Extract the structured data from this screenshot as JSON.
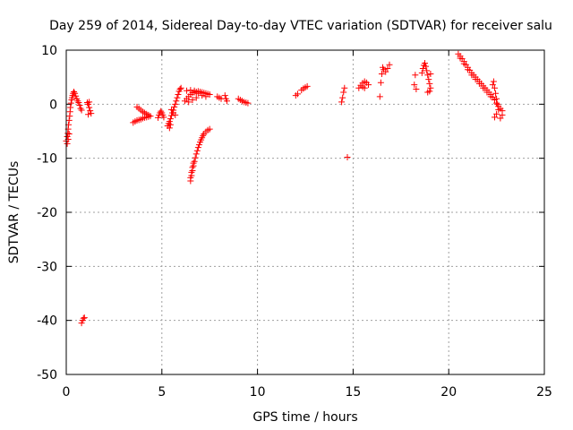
{
  "chart_data": {
    "type": "scatter",
    "title": "Day 259 of 2014, Sidereal Day-to-day VTEC variation (SDTVAR) for receiver salu",
    "xlabel": "GPS time / hours",
    "ylabel": "SDTVAR / TECUs",
    "xlim": [
      0,
      25
    ],
    "ylim": [
      -50,
      10
    ],
    "xticks": [
      0,
      5,
      10,
      15,
      20,
      25
    ],
    "yticks": [
      -50,
      -40,
      -30,
      -20,
      -10,
      0,
      10
    ],
    "xtick_labels": [
      "0",
      "5",
      "10",
      "15",
      "20",
      "25"
    ],
    "ytick_labels": [
      "-50",
      "-40",
      "-30",
      "-20",
      "-10",
      "0",
      "10"
    ],
    "grid": true,
    "marker": "+",
    "color": "#ff0000",
    "series": [
      {
        "name": "SDTVAR",
        "points": [
          [
            0.0,
            -6.8
          ],
          [
            0.05,
            -6.0
          ],
          [
            0.08,
            -5.4
          ],
          [
            0.1,
            -4.6
          ],
          [
            0.12,
            -3.8
          ],
          [
            0.15,
            -3.0
          ],
          [
            0.18,
            -2.2
          ],
          [
            0.2,
            -1.4
          ],
          [
            0.22,
            -0.6
          ],
          [
            0.25,
            0.2
          ],
          [
            0.28,
            0.8
          ],
          [
            0.3,
            1.2
          ],
          [
            0.33,
            1.6
          ],
          [
            0.36,
            2.0
          ],
          [
            0.4,
            2.3
          ],
          [
            0.45,
            2.0
          ],
          [
            0.5,
            1.5
          ],
          [
            0.55,
            1.0
          ],
          [
            0.6,
            0.6
          ],
          [
            0.65,
            0.3
          ],
          [
            0.7,
            -0.2
          ],
          [
            0.75,
            -0.8
          ],
          [
            0.8,
            -1.1
          ],
          [
            0.05,
            -7.3
          ],
          [
            0.1,
            -6.5
          ],
          [
            0.15,
            -5.5
          ],
          [
            0.8,
            -40.5
          ],
          [
            0.85,
            -40.0
          ],
          [
            0.9,
            -39.6
          ],
          [
            0.95,
            -39.5
          ],
          [
            1.1,
            0.3
          ],
          [
            1.15,
            0.0
          ],
          [
            1.2,
            -0.6
          ],
          [
            1.25,
            -1.2
          ],
          [
            1.3,
            -1.7
          ],
          [
            1.15,
            -1.9
          ],
          [
            1.2,
            0.4
          ],
          [
            3.5,
            -3.4
          ],
          [
            3.6,
            -3.2
          ],
          [
            3.7,
            -3.0
          ],
          [
            3.8,
            -2.9
          ],
          [
            3.9,
            -2.8
          ],
          [
            4.0,
            -2.6
          ],
          [
            4.1,
            -2.5
          ],
          [
            4.2,
            -2.4
          ],
          [
            4.3,
            -2.3
          ],
          [
            4.4,
            -2.2
          ],
          [
            3.7,
            -0.5
          ],
          [
            3.8,
            -0.8
          ],
          [
            3.9,
            -1.1
          ],
          [
            4.0,
            -1.4
          ],
          [
            4.1,
            -1.6
          ],
          [
            4.2,
            -1.8
          ],
          [
            4.3,
            -2.0
          ],
          [
            4.8,
            -2.5
          ],
          [
            4.85,
            -2.0
          ],
          [
            4.9,
            -1.6
          ],
          [
            4.95,
            -1.3
          ],
          [
            5.0,
            -1.6
          ],
          [
            5.05,
            -2.0
          ],
          [
            5.1,
            -2.4
          ],
          [
            5.3,
            -4.0
          ],
          [
            5.35,
            -3.6
          ],
          [
            5.4,
            -3.2
          ],
          [
            5.45,
            -2.7
          ],
          [
            5.5,
            -2.1
          ],
          [
            5.55,
            -1.6
          ],
          [
            5.6,
            -1.1
          ],
          [
            5.65,
            -0.5
          ],
          [
            5.7,
            0.0
          ],
          [
            5.75,
            0.6
          ],
          [
            5.8,
            1.2
          ],
          [
            5.85,
            1.8
          ],
          [
            5.9,
            2.4
          ],
          [
            5.95,
            2.8
          ],
          [
            6.0,
            3.0
          ],
          [
            5.4,
            -4.4
          ],
          [
            5.45,
            -3.8
          ],
          [
            5.5,
            -1.0
          ],
          [
            5.6,
            -1.6
          ],
          [
            5.7,
            -2.0
          ],
          [
            6.2,
            0.6
          ],
          [
            6.3,
            1.0
          ],
          [
            6.4,
            1.4
          ],
          [
            6.5,
            1.8
          ],
          [
            6.6,
            2.1
          ],
          [
            6.7,
            2.2
          ],
          [
            6.8,
            2.3
          ],
          [
            6.9,
            2.4
          ],
          [
            7.0,
            2.3
          ],
          [
            7.1,
            2.2
          ],
          [
            7.2,
            2.1
          ],
          [
            7.3,
            2.0
          ],
          [
            7.4,
            1.9
          ],
          [
            7.5,
            1.8
          ],
          [
            6.3,
            2.5
          ],
          [
            6.5,
            2.6
          ],
          [
            6.7,
            2.5
          ],
          [
            6.9,
            2.0
          ],
          [
            7.1,
            1.6
          ],
          [
            7.3,
            1.4
          ],
          [
            6.4,
            0.4
          ],
          [
            6.6,
            0.8
          ],
          [
            6.8,
            1.2
          ],
          [
            6.5,
            -14.2
          ],
          [
            6.55,
            -13.2
          ],
          [
            6.6,
            -12.3
          ],
          [
            6.65,
            -11.4
          ],
          [
            6.7,
            -10.6
          ],
          [
            6.75,
            -9.9
          ],
          [
            6.8,
            -9.2
          ],
          [
            6.85,
            -8.6
          ],
          [
            6.9,
            -8.0
          ],
          [
            6.95,
            -7.5
          ],
          [
            7.0,
            -7.0
          ],
          [
            7.05,
            -6.6
          ],
          [
            7.1,
            -6.2
          ],
          [
            7.15,
            -5.8
          ],
          [
            7.2,
            -5.5
          ],
          [
            7.3,
            -5.1
          ],
          [
            7.4,
            -4.8
          ],
          [
            7.5,
            -4.6
          ],
          [
            6.5,
            -13.6
          ],
          [
            6.55,
            -12.6
          ],
          [
            6.6,
            -11.7
          ],
          [
            6.65,
            -10.9
          ],
          [
            7.9,
            1.4
          ],
          [
            8.0,
            1.2
          ],
          [
            8.1,
            1.0
          ],
          [
            8.3,
            1.6
          ],
          [
            8.35,
            1.0
          ],
          [
            8.4,
            0.6
          ],
          [
            9.0,
            1.0
          ],
          [
            9.1,
            0.8
          ],
          [
            9.2,
            0.6
          ],
          [
            9.3,
            0.4
          ],
          [
            9.4,
            0.3
          ],
          [
            9.5,
            0.2
          ],
          [
            12.0,
            1.6
          ],
          [
            12.1,
            1.9
          ],
          [
            12.3,
            2.6
          ],
          [
            12.4,
            2.9
          ],
          [
            12.5,
            3.1
          ],
          [
            12.6,
            3.3
          ],
          [
            14.4,
            0.4
          ],
          [
            14.45,
            1.2
          ],
          [
            14.5,
            2.2
          ],
          [
            14.55,
            3.0
          ],
          [
            14.7,
            -9.8
          ],
          [
            15.3,
            3.0
          ],
          [
            15.4,
            3.5
          ],
          [
            15.5,
            3.9
          ],
          [
            15.6,
            4.2
          ],
          [
            15.7,
            4.0
          ],
          [
            15.8,
            3.6
          ],
          [
            15.5,
            3.2
          ],
          [
            15.6,
            3.0
          ],
          [
            16.4,
            1.4
          ],
          [
            16.45,
            4.0
          ],
          [
            16.5,
            5.6
          ],
          [
            16.55,
            6.8
          ],
          [
            16.6,
            6.4
          ],
          [
            16.7,
            6.0
          ],
          [
            16.8,
            6.6
          ],
          [
            16.9,
            7.3
          ],
          [
            18.2,
            3.6
          ],
          [
            18.25,
            5.4
          ],
          [
            18.3,
            2.8
          ],
          [
            18.6,
            5.8
          ],
          [
            18.65,
            6.6
          ],
          [
            18.7,
            7.2
          ],
          [
            18.75,
            7.6
          ],
          [
            18.8,
            7.0
          ],
          [
            18.85,
            6.2
          ],
          [
            18.9,
            5.4
          ],
          [
            18.95,
            4.6
          ],
          [
            19.0,
            3.8
          ],
          [
            19.0,
            2.4
          ],
          [
            19.05,
            3.0
          ],
          [
            18.9,
            2.2
          ],
          [
            19.05,
            5.6
          ],
          [
            20.5,
            9.3
          ],
          [
            20.6,
            8.9
          ],
          [
            20.7,
            8.4
          ],
          [
            20.8,
            7.9
          ],
          [
            20.9,
            7.3
          ],
          [
            21.0,
            6.8
          ],
          [
            21.1,
            6.3
          ],
          [
            21.2,
            5.8
          ],
          [
            21.3,
            5.4
          ],
          [
            21.4,
            5.0
          ],
          [
            21.5,
            4.6
          ],
          [
            21.6,
            4.2
          ],
          [
            21.7,
            3.8
          ],
          [
            21.8,
            3.4
          ],
          [
            21.9,
            3.0
          ],
          [
            22.0,
            2.6
          ],
          [
            22.1,
            2.2
          ],
          [
            22.2,
            1.8
          ],
          [
            22.3,
            1.3
          ],
          [
            22.4,
            0.8
          ],
          [
            22.5,
            0.2
          ],
          [
            22.6,
            -0.4
          ],
          [
            22.7,
            -0.8
          ],
          [
            22.8,
            -1.2
          ],
          [
            20.6,
            8.5
          ],
          [
            20.8,
            7.5
          ],
          [
            21.0,
            6.4
          ],
          [
            21.2,
            5.4
          ],
          [
            21.4,
            4.6
          ],
          [
            21.6,
            3.8
          ],
          [
            21.8,
            3.0
          ],
          [
            22.0,
            2.2
          ],
          [
            22.2,
            1.4
          ],
          [
            22.3,
            3.6
          ],
          [
            22.35,
            4.2
          ],
          [
            22.4,
            3.0
          ],
          [
            22.45,
            2.0
          ],
          [
            22.5,
            1.0
          ],
          [
            22.55,
            0.0
          ],
          [
            22.6,
            -1.0
          ],
          [
            22.4,
            -2.4
          ],
          [
            22.5,
            -1.8
          ],
          [
            22.7,
            -2.6
          ],
          [
            22.8,
            -2.0
          ]
        ]
      }
    ]
  }
}
